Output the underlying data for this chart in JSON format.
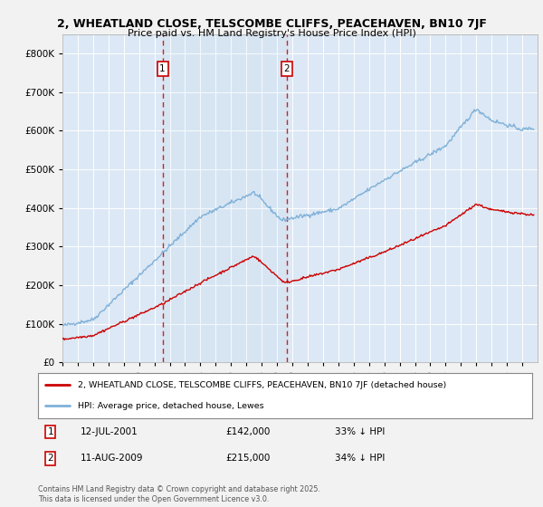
{
  "title_line1": "2, WHEATLAND CLOSE, TELSCOMBE CLIFFS, PEACEHAVEN, BN10 7JF",
  "title_line2": "Price paid vs. HM Land Registry's House Price Index (HPI)",
  "background_color": "#f2f2f2",
  "plot_bg_color": "#dce8f5",
  "legend_label_house": "2, WHEATLAND CLOSE, TELSCOMBE CLIFFS, PEACEHAVEN, BN10 7JF (detached house)",
  "legend_label_hpi": "HPI: Average price, detached house, Lewes",
  "sale1_date": "12-JUL-2001",
  "sale1_price": "£142,000",
  "sale1_pct": "33% ↓ HPI",
  "sale2_date": "11-AUG-2009",
  "sale2_price": "£215,000",
  "sale2_pct": "34% ↓ HPI",
  "copyright_text": "Contains HM Land Registry data © Crown copyright and database right 2025.\nThis data is licensed under the Open Government Licence v3.0.",
  "house_color": "#cc0000",
  "hpi_color": "#7fb0d8",
  "sale_line_color": "#cc0000",
  "ylim_max": 850000,
  "x_start_year": 1995,
  "x_end_year": 2026,
  "sale1_x": 2001.53,
  "sale2_x": 2009.62
}
